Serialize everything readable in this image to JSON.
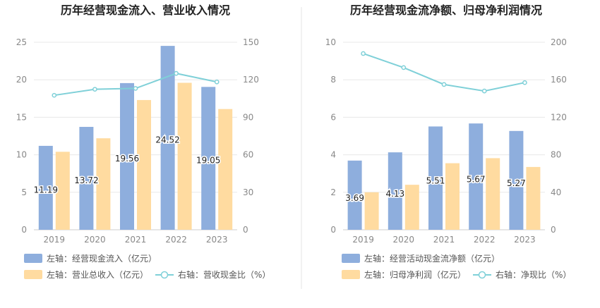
{
  "colors": {
    "bar_primary": "#8eaedd",
    "bar_secondary": "#ffdba0",
    "line": "#7fd0d8",
    "grid": "#e8e8e8",
    "divider": "#e6e6e6"
  },
  "chart_data": [
    {
      "type": "bar",
      "title": "历年经营现金流入、营业收入情况",
      "categories": [
        "2019",
        "2020",
        "2021",
        "2022",
        "2023"
      ],
      "y_left": {
        "ticks": [
          "0",
          "5",
          "10",
          "15",
          "20",
          "25"
        ],
        "lim": [
          0,
          25
        ]
      },
      "y_right": {
        "ticks": [
          "0",
          "30",
          "60",
          "90",
          "120",
          "150"
        ],
        "lim": [
          0,
          150
        ]
      },
      "series": [
        {
          "name": "左轴：经营现金流入（亿元）",
          "axis": "left",
          "kind": "bar",
          "color_key": "bar_primary",
          "values": [
            11.19,
            13.72,
            19.56,
            24.52,
            19.05
          ],
          "labels": [
            "11.19",
            "13.72",
            "19.56",
            "24.52",
            "19.05"
          ]
        },
        {
          "name": "左轴：营业总收入（亿元）",
          "axis": "left",
          "kind": "bar",
          "color_key": "bar_secondary",
          "values": [
            10.4,
            12.2,
            17.3,
            19.6,
            16.1
          ]
        },
        {
          "name": "右轴：营收现金比（%）",
          "axis": "right",
          "kind": "line",
          "color_key": "line",
          "values": [
            107.6,
            112.4,
            113.1,
            125.1,
            118.3
          ]
        }
      ],
      "legend": "bottom"
    },
    {
      "type": "bar",
      "title": "历年经营现金流净额、归母净利润情况",
      "categories": [
        "2019",
        "2020",
        "2021",
        "2022",
        "2023"
      ],
      "y_left": {
        "ticks": [
          "0",
          "2",
          "4",
          "6",
          "8",
          "10"
        ],
        "lim": [
          0,
          10
        ]
      },
      "y_right": {
        "ticks": [
          "0",
          "40",
          "80",
          "120",
          "160",
          "200"
        ],
        "lim": [
          0,
          200
        ]
      },
      "series": [
        {
          "name": "左轴：经营活动现金流净额（亿元）",
          "axis": "left",
          "kind": "bar",
          "color_key": "bar_primary",
          "values": [
            3.69,
            4.13,
            5.51,
            5.67,
            5.27
          ],
          "labels": [
            "3.69",
            "4.13",
            "5.51",
            "5.67",
            "5.27"
          ]
        },
        {
          "name": "左轴：归母净利润（亿元）",
          "axis": "left",
          "kind": "bar",
          "color_key": "bar_secondary",
          "values": [
            2.0,
            2.4,
            3.55,
            3.82,
            3.35
          ]
        },
        {
          "name": "右轴：净现比（%）",
          "axis": "right",
          "kind": "line",
          "color_key": "line",
          "values": [
            188,
            173,
            155,
            148,
            157
          ]
        }
      ],
      "legend": "bottom"
    }
  ]
}
